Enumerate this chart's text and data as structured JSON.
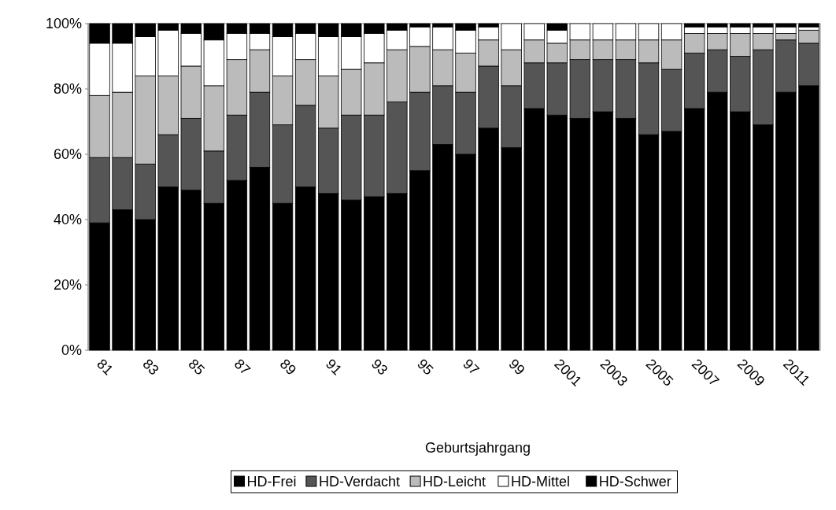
{
  "chart_data": {
    "type": "bar",
    "stacked": true,
    "xlabel": "Geburtsjahrgang",
    "categories": [
      "81",
      null,
      "83",
      null,
      "85",
      null,
      "87",
      null,
      "89",
      null,
      "91",
      null,
      "93",
      null,
      "95",
      null,
      "97",
      null,
      "99",
      null,
      "2001",
      null,
      "2003",
      null,
      "2005",
      null,
      "2007",
      null,
      "2009",
      null,
      "2011",
      null
    ],
    "series": [
      {
        "name": "HD-Frei",
        "color": "#000000",
        "values": [
          39,
          43,
          40,
          50,
          49,
          45,
          52,
          56,
          45,
          50,
          48,
          46,
          47,
          48,
          55,
          63,
          60,
          68,
          62,
          74,
          72,
          71,
          73,
          71,
          66,
          67,
          74,
          79,
          73,
          69,
          79,
          81
        ]
      },
      {
        "name": "HD-Verdacht",
        "color": "#555555",
        "values": [
          20,
          16,
          17,
          16,
          22,
          16,
          20,
          23,
          24,
          25,
          20,
          26,
          25,
          28,
          24,
          18,
          19,
          19,
          19,
          14,
          16,
          18,
          16,
          18,
          22,
          19,
          17,
          13,
          17,
          23,
          16,
          13
        ]
      },
      {
        "name": "HD-Leicht",
        "color": "#bbbbbb",
        "values": [
          19,
          20,
          27,
          18,
          16,
          20,
          17,
          13,
          15,
          14,
          16,
          14,
          16,
          16,
          14,
          11,
          12,
          8,
          11,
          7,
          6,
          6,
          6,
          6,
          7,
          9,
          6,
          5,
          7,
          5,
          2,
          4
        ]
      },
      {
        "name": "HD-Mittel",
        "color": "#ffffff",
        "values": [
          16,
          15,
          12,
          14,
          10,
          14,
          8,
          5,
          12,
          8,
          12,
          10,
          9,
          6,
          6,
          7,
          7,
          4,
          8,
          5,
          4,
          5,
          5,
          5,
          5,
          5,
          2,
          2,
          2,
          2,
          2,
          1
        ]
      },
      {
        "name": "HD-Schwer",
        "color": "#000000",
        "values": [
          6,
          6,
          4,
          2,
          3,
          5,
          3,
          3,
          4,
          3,
          4,
          4,
          3,
          2,
          1,
          1,
          2,
          1,
          0,
          0,
          2,
          0,
          0,
          0,
          0,
          0,
          1,
          1,
          1,
          1,
          1,
          1
        ]
      }
    ],
    "ylim": [
      0,
      100
    ],
    "yticks": [
      {
        "value": 0,
        "label": "0%"
      },
      {
        "value": 20,
        "label": "20%"
      },
      {
        "value": 40,
        "label": "40%"
      },
      {
        "value": 60,
        "label": "60%"
      },
      {
        "value": 80,
        "label": "80%"
      },
      {
        "value": 100,
        "label": "100%"
      }
    ],
    "legend": "bottom"
  }
}
